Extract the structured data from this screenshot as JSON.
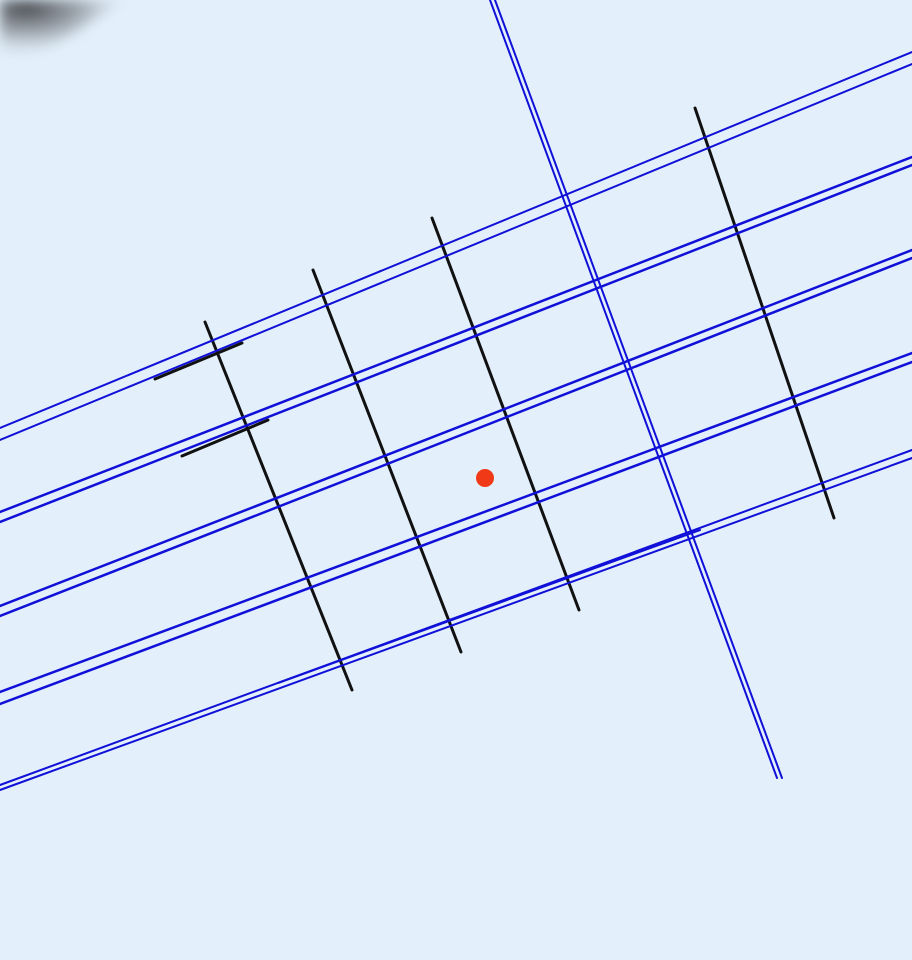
{
  "colors": {
    "background": "#e3f0fb",
    "grid_lines": "#111111",
    "detected_lines": "#1010d8",
    "marker": "#f03a17",
    "smudge": "#4a4d52"
  },
  "scene": {
    "description_free": true,
    "grid_line_count": 5,
    "detected_line_count": 13,
    "marker_count": 1
  }
}
